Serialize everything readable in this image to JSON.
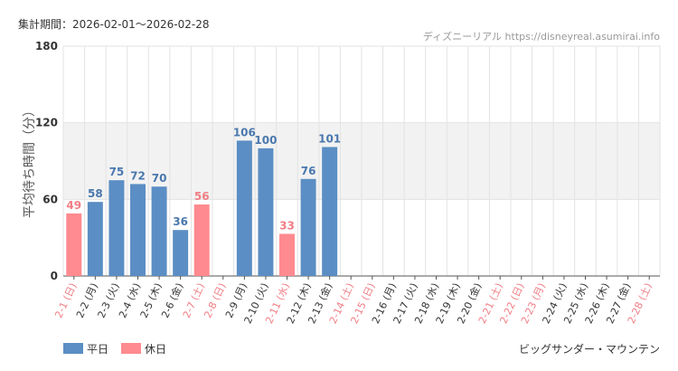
{
  "header": {
    "period": "集計期間：2026-02-01〜2026-02-28",
    "credit": "ディズニーリアル https://disneyreal.asumirai.info"
  },
  "footer": {
    "attraction": "ビッグサンダー・マウンテン"
  },
  "colors": {
    "weekday": "#5b8ec4",
    "holiday": "#ff8a8f",
    "weekday_label": "#4a78ad",
    "holiday_label": "#f07d84",
    "band": "#f2f2f2",
    "grid": "#e3e3e3"
  },
  "chart_data": {
    "type": "bar",
    "ylabel": "平均待ち時間（分）",
    "ylim": [
      0,
      180
    ],
    "yticks": [
      0,
      60,
      120,
      180
    ],
    "band": [
      60,
      120
    ],
    "grid": true,
    "legend_position": "bottom-left",
    "legend": [
      {
        "name": "平日",
        "kind": "weekday"
      },
      {
        "name": "休日",
        "kind": "holiday"
      }
    ],
    "categories": [
      "2-1 (日)",
      "2-2 (月)",
      "2-3 (火)",
      "2-4 (水)",
      "2-5 (木)",
      "2-6 (金)",
      "2-7 (土)",
      "2-8 (日)",
      "2-9 (月)",
      "2-10 (火)",
      "2-11 (水)",
      "2-12 (木)",
      "2-13 (金)",
      "2-14 (土)",
      "2-15 (日)",
      "2-16 (月)",
      "2-17 (火)",
      "2-18 (水)",
      "2-19 (木)",
      "2-20 (金)",
      "2-21 (土)",
      "2-22 (日)",
      "2-23 (月)",
      "2-24 (火)",
      "2-25 (水)",
      "2-26 (木)",
      "2-27 (金)",
      "2-28 (土)"
    ],
    "values": [
      49,
      58,
      75,
      72,
      70,
      36,
      56,
      null,
      106,
      100,
      33,
      76,
      101,
      null,
      null,
      null,
      null,
      null,
      null,
      null,
      null,
      null,
      null,
      null,
      null,
      null,
      null,
      null
    ],
    "day_type": [
      "holiday",
      "weekday",
      "weekday",
      "weekday",
      "weekday",
      "weekday",
      "holiday",
      "holiday",
      "weekday",
      "weekday",
      "holiday",
      "weekday",
      "weekday",
      "holiday",
      "holiday",
      "weekday",
      "weekday",
      "weekday",
      "weekday",
      "weekday",
      "holiday",
      "holiday",
      "holiday",
      "weekday",
      "weekday",
      "weekday",
      "weekday",
      "holiday"
    ]
  }
}
